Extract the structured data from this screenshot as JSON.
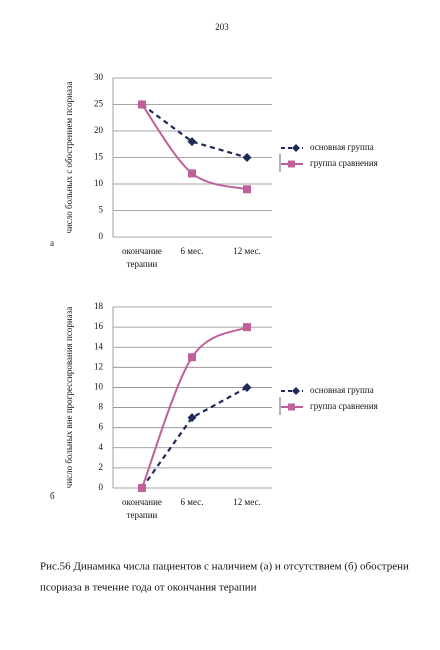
{
  "page_number": "203",
  "chart_data": [
    {
      "type": "line",
      "label": "а",
      "ylabel": "число больных с обострением псориаза",
      "categories": [
        [
          "окончание",
          "терапии"
        ],
        "6 мес.",
        "12 мес."
      ],
      "ylim": [
        0,
        30
      ],
      "yticks": [
        0,
        5,
        10,
        15,
        20,
        25,
        30
      ],
      "grid": true,
      "series": [
        {
          "name": "основная группа",
          "color": "#1f2a5a",
          "values": [
            25,
            18,
            15
          ]
        },
        {
          "name": "группа сравнения",
          "color": "#c0609a",
          "values": [
            25,
            12,
            9
          ]
        }
      ]
    },
    {
      "type": "line",
      "label": "б",
      "ylabel": "число больных вне прогрессирования псориаза",
      "categories": [
        [
          "окончание",
          "терапии"
        ],
        "6 мес.",
        "12 мес."
      ],
      "ylim": [
        0,
        18
      ],
      "yticks": [
        0,
        2,
        4,
        6,
        8,
        10,
        12,
        14,
        16,
        18
      ],
      "grid": true,
      "series": [
        {
          "name": "основная группа",
          "color": "#1f2a5a",
          "values": [
            0,
            7,
            10
          ]
        },
        {
          "name": "группа сравнения",
          "color": "#c0609a",
          "values": [
            0,
            13,
            16
          ]
        }
      ]
    }
  ],
  "caption": [
    "Рис.56  Динамика числа пациентов с наличием (а) и отсутствием (б) обострени",
    "псориаза в течение года от окончания терапии"
  ]
}
